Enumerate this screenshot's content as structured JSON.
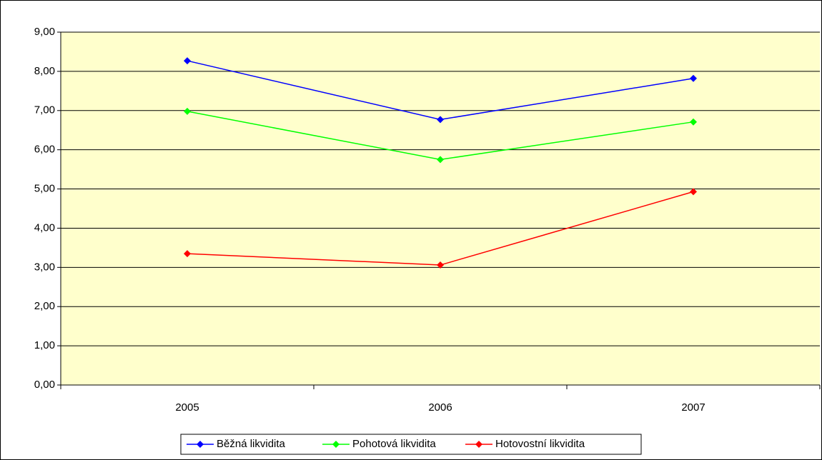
{
  "chart_data": {
    "type": "line",
    "categories": [
      "2005",
      "2006",
      "2007"
    ],
    "series": [
      {
        "name": "Běžná likvidita",
        "color": "#0000ff",
        "values": [
          8.27,
          6.77,
          7.82
        ]
      },
      {
        "name": "Pohotová likvidita",
        "color": "#00ff00",
        "values": [
          6.98,
          5.75,
          6.71
        ]
      },
      {
        "name": "Hotovostní likvidita",
        "color": "#ff0000",
        "values": [
          3.35,
          3.06,
          4.93
        ]
      }
    ],
    "ylim": [
      0,
      9
    ],
    "yticks": [
      {
        "value": 0,
        "label": "0,00"
      },
      {
        "value": 1,
        "label": "1,00"
      },
      {
        "value": 2,
        "label": "2,00"
      },
      {
        "value": 3,
        "label": "3,00"
      },
      {
        "value": 4,
        "label": "4,00"
      },
      {
        "value": 5,
        "label": "5,00"
      },
      {
        "value": 6,
        "label": "6,00"
      },
      {
        "value": 7,
        "label": "7,00"
      },
      {
        "value": 8,
        "label": "8,00"
      },
      {
        "value": 9,
        "label": "9,00"
      }
    ],
    "grid": true,
    "plot_background": "#ffffcc",
    "legend": "bottom"
  }
}
